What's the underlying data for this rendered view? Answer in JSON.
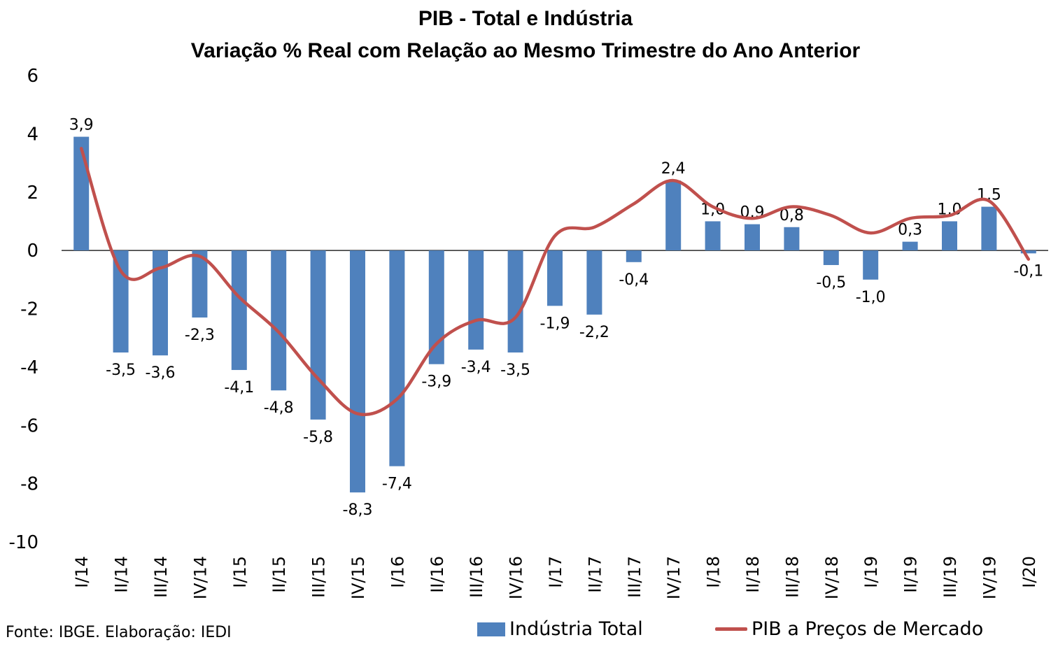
{
  "chart_data": {
    "type": "bar",
    "title": "PIB - Total e Indústria",
    "subtitle": "Variação % Real com Relação ao Mesmo Trimestre do Ano Anterior",
    "categories": [
      "I/14",
      "II/14",
      "III/14",
      "IV/14",
      "I/15",
      "II/15",
      "III/15",
      "IV/15",
      "I/16",
      "II/16",
      "III/16",
      "IV/16",
      "I/17",
      "II/17",
      "III/17",
      "IV/17",
      "I/18",
      "II/18",
      "III/18",
      "IV/18",
      "I/19",
      "II/19",
      "III/19",
      "IV/19",
      "I/20"
    ],
    "series": [
      {
        "name": "Indústria Total",
        "type": "bar",
        "color": "#4f81bd",
        "values": [
          3.9,
          -3.5,
          -3.6,
          -2.3,
          -4.1,
          -4.8,
          -5.8,
          -8.3,
          -7.4,
          -3.9,
          -3.4,
          -3.5,
          -1.9,
          -2.2,
          -0.4,
          2.4,
          1.0,
          0.9,
          0.8,
          -0.5,
          -1.0,
          0.3,
          1.0,
          1.5,
          -0.1
        ],
        "labels": [
          "3,9",
          "-3,5",
          "-3,6",
          "-2,3",
          "-4,1",
          "-4,8",
          "-5,8",
          "-8,3",
          "-7,4",
          "-3,9",
          "-3,4",
          "-3,5",
          "-1,9",
          "-2,2",
          "-0,4",
          "2,4",
          "1,0",
          "0,9",
          "0,8",
          "-0,5",
          "-1,0",
          "0,3",
          "1,0",
          "1,5",
          "-0,1"
        ]
      },
      {
        "name": "PIB a Preços de Mercado",
        "type": "line",
        "color": "#c0504d",
        "values": [
          3.5,
          -0.7,
          -0.6,
          -0.2,
          -1.6,
          -2.8,
          -4.4,
          -5.6,
          -5.1,
          -3.2,
          -2.4,
          -2.3,
          0.5,
          0.8,
          1.6,
          2.4,
          1.5,
          1.1,
          1.5,
          1.2,
          0.6,
          1.1,
          1.2,
          1.7,
          -0.3
        ]
      }
    ],
    "yticks": [
      "6",
      "4",
      "2",
      "0",
      "-2",
      "-4",
      "-6",
      "-8",
      "-10"
    ],
    "ylim": [
      -10,
      6
    ],
    "xlabel": "",
    "ylabel": "",
    "grid": false,
    "legend": "bottom"
  },
  "footer": {
    "source": "Fonte: IBGE. Elaboração: IEDI"
  }
}
